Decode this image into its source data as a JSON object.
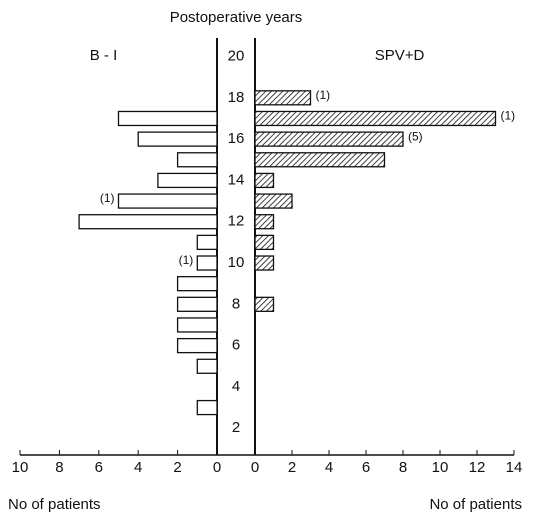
{
  "chart_data": {
    "type": "butterfly",
    "title": "Postoperative years",
    "ylim": [
      0.8,
      20.8
    ],
    "yticks": [
      2,
      4,
      6,
      8,
      10,
      12,
      14,
      16,
      18,
      20
    ],
    "series": [
      {
        "name": "B - I",
        "side": "left",
        "color": "#ffffff",
        "xlabel": "No of patients",
        "xlim": [
          10,
          0
        ],
        "xticks": [
          10,
          8,
          6,
          4,
          2,
          0
        ],
        "y": [
          17,
          16,
          15,
          14,
          13,
          12,
          11,
          10,
          9,
          8,
          7,
          6,
          5,
          3
        ],
        "values": [
          5,
          4,
          2,
          3,
          5,
          7,
          1,
          1,
          2,
          2,
          2,
          2,
          1,
          1
        ],
        "value_notes": [
          null,
          null,
          null,
          null,
          "(1)",
          null,
          null,
          "(1)",
          null,
          null,
          null,
          null,
          null,
          null
        ]
      },
      {
        "name": "SPV+D",
        "side": "right",
        "color": "hatch",
        "xlabel": "No of patients",
        "xlim": [
          0,
          14
        ],
        "xticks": [
          0,
          2,
          4,
          6,
          8,
          10,
          12,
          14
        ],
        "y": [
          18,
          17,
          16,
          15,
          14,
          13,
          12,
          11,
          10,
          8
        ],
        "values": [
          3,
          13,
          8,
          7,
          1,
          2,
          1,
          1,
          1,
          1
        ],
        "value_notes": [
          "(1)",
          "(1)",
          "(5)",
          null,
          null,
          null,
          null,
          null,
          null,
          null
        ]
      }
    ]
  }
}
